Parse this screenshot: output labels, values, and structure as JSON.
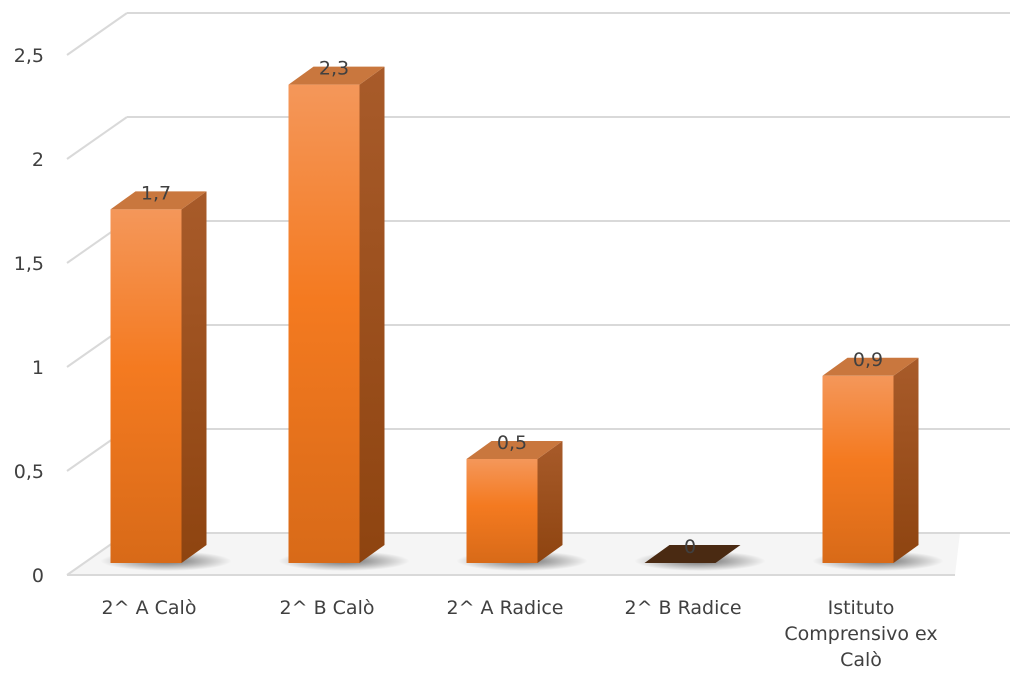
{
  "chart_data": {
    "type": "bar",
    "title": "",
    "xlabel": "",
    "ylabel": "",
    "categories": [
      [
        "2^ A Calò"
      ],
      [
        "2^ B Calò"
      ],
      [
        "2^ A Radice"
      ],
      [
        "2^ B Radice"
      ],
      [
        "Istituto",
        "Comprensivo ex",
        "Calò"
      ]
    ],
    "values": [
      1.7,
      2.3,
      0.5,
      0,
      0.9
    ],
    "value_labels": [
      "1,7",
      "2,3",
      "0,5",
      "0",
      "0,9"
    ],
    "ylim": [
      0,
      2.5
    ],
    "y_ticks": [
      0,
      0.5,
      1,
      1.5,
      2,
      2.5
    ],
    "y_tick_labels": [
      "0",
      "0,5",
      "1",
      "1,5",
      "2",
      "2,5"
    ],
    "grid": true,
    "legend": "none",
    "style": "3d-column",
    "colors": {
      "bar_top_light": "#F4975A",
      "bar_front_mid": "#F47A20",
      "bar_front_dark": "#D86A18",
      "bar_side": "#B05A20",
      "bar_top": "#C9773E",
      "zero_bar": "#4A2A12",
      "gridline": "#D9D9D9",
      "text": "#404040"
    }
  }
}
